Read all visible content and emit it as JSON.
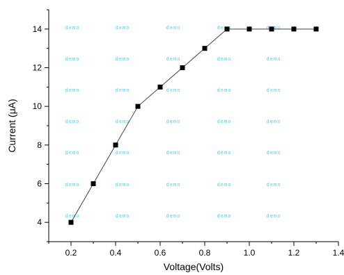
{
  "chart_data": {
    "type": "line",
    "xlabel": "Voltage(Volts)",
    "ylabel": "Current (μA)",
    "xlim": [
      0.1,
      1.4
    ],
    "ylim": [
      3,
      15
    ],
    "x_ticks": [
      0.2,
      0.4,
      0.6,
      0.8,
      1.0,
      1.2,
      1.4
    ],
    "x_tick_labels": [
      "0.2",
      "0.4",
      "0.6",
      "0.8",
      "1.0",
      "1.2",
      "1.4"
    ],
    "y_ticks": [
      4,
      6,
      8,
      10,
      12,
      14
    ],
    "y_tick_labels": [
      "4",
      "6",
      "8",
      "10",
      "12",
      "14"
    ],
    "grid": false,
    "series": [
      {
        "x": [
          0.2,
          0.3,
          0.4,
          0.5,
          0.6,
          0.7,
          0.8,
          0.9,
          1.0,
          1.1,
          1.2,
          1.3
        ],
        "y": [
          4,
          6,
          8,
          10,
          11,
          12,
          13,
          14,
          14,
          14,
          14,
          14
        ],
        "marker": "square",
        "color": "#000000"
      }
    ],
    "watermark": {
      "text": "demo",
      "color": "#4fd1e8"
    }
  }
}
